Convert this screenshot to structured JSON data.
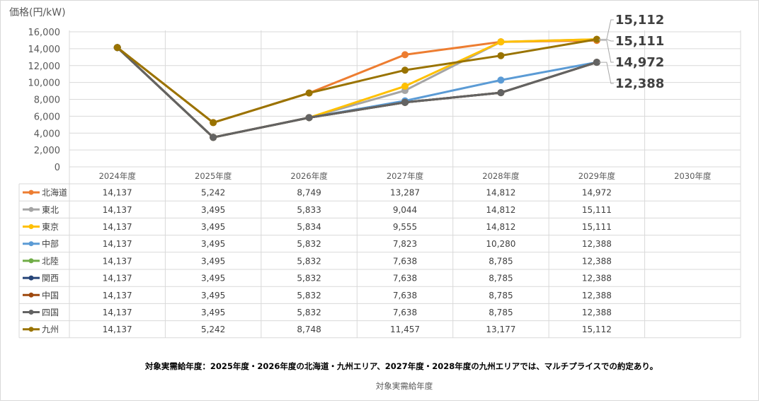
{
  "chart_data": {
    "type": "line",
    "ylabel": "価格(円/kW)",
    "xlabel": "対象実需給年度",
    "ylim": [
      0,
      16000
    ],
    "yticks": [
      0,
      2000,
      4000,
      6000,
      8000,
      10000,
      12000,
      14000,
      16000
    ],
    "ytick_labels": [
      "0",
      "2,000",
      "4,000",
      "6,000",
      "8,000",
      "10,000",
      "12,000",
      "14,000",
      "16,000"
    ],
    "grid": true,
    "categories": [
      "2024年度",
      "2025年度",
      "2026年度",
      "2027年度",
      "2028年度",
      "2029年度",
      "2030年度"
    ],
    "series": [
      {
        "name": "北海道",
        "color": "#ED7D31",
        "values": [
          14137,
          5242,
          8749,
          13287,
          14812,
          14972,
          null
        ],
        "labels": [
          "14,137",
          "5,242",
          "8,749",
          "13,287",
          "14,812",
          "14,972",
          ""
        ]
      },
      {
        "name": "東北",
        "color": "#A5A5A5",
        "values": [
          14137,
          3495,
          5833,
          9044,
          14812,
          15111,
          null
        ],
        "labels": [
          "14,137",
          "3,495",
          "5,833",
          "9,044",
          "14,812",
          "15,111",
          ""
        ]
      },
      {
        "name": "東京",
        "color": "#FFC000",
        "values": [
          14137,
          3495,
          5834,
          9555,
          14812,
          15111,
          null
        ],
        "labels": [
          "14,137",
          "3,495",
          "5,834",
          "9,555",
          "14,812",
          "15,111",
          ""
        ]
      },
      {
        "name": "中部",
        "color": "#5B9BD5",
        "values": [
          14137,
          3495,
          5832,
          7823,
          10280,
          12388,
          null
        ],
        "labels": [
          "14,137",
          "3,495",
          "5,832",
          "7,823",
          "10,280",
          "12,388",
          ""
        ]
      },
      {
        "name": "北陸",
        "color": "#70AD47",
        "values": [
          14137,
          3495,
          5832,
          7638,
          8785,
          12388,
          null
        ],
        "labels": [
          "14,137",
          "3,495",
          "5,832",
          "7,638",
          "8,785",
          "12,388",
          ""
        ]
      },
      {
        "name": "関西",
        "color": "#264478",
        "values": [
          14137,
          3495,
          5832,
          7638,
          8785,
          12388,
          null
        ],
        "labels": [
          "14,137",
          "3,495",
          "5,832",
          "7,638",
          "8,785",
          "12,388",
          ""
        ]
      },
      {
        "name": "中国",
        "color": "#9E480E",
        "values": [
          14137,
          3495,
          5832,
          7638,
          8785,
          12388,
          null
        ],
        "labels": [
          "14,137",
          "3,495",
          "5,832",
          "7,638",
          "8,785",
          "12,388",
          ""
        ]
      },
      {
        "name": "四国",
        "color": "#636363",
        "values": [
          14137,
          3495,
          5832,
          7638,
          8785,
          12388,
          null
        ],
        "labels": [
          "14,137",
          "3,495",
          "5,832",
          "7,638",
          "8,785",
          "12,388",
          ""
        ]
      },
      {
        "name": "九州",
        "color": "#997300",
        "values": [
          14137,
          5242,
          8748,
          11457,
          13177,
          15112,
          null
        ],
        "labels": [
          "14,137",
          "5,242",
          "8,748",
          "11,457",
          "13,177",
          "15,112",
          ""
        ]
      }
    ],
    "callouts": [
      {
        "text": "15,112",
        "value": 15112,
        "order": 0
      },
      {
        "text": "15,111",
        "value": 15111,
        "order": 1
      },
      {
        "text": "14,972",
        "value": 14972,
        "order": 2
      },
      {
        "text": "12,388",
        "value": 12388,
        "order": 3
      }
    ],
    "note": "対象実需給年度：2025年度・2026年度の北海道・九州エリア、2027年度・2028年度の九州エリアでは、マルチプライスでの約定あり。"
  }
}
